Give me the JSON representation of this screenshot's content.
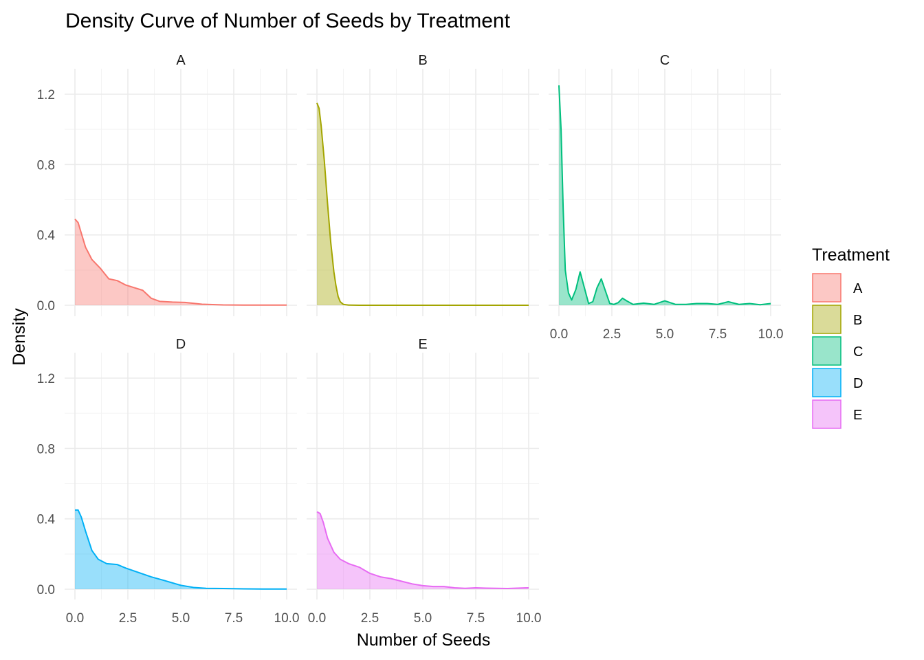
{
  "chart_data": {
    "type": "area",
    "title": "Density Curve of Number of Seeds by Treatment",
    "xlabel": "Number of Seeds",
    "ylabel": "Density",
    "xlim": [
      0,
      10
    ],
    "ylim": [
      0,
      1.25
    ],
    "x_ticks": [
      0,
      2.5,
      5,
      7.5,
      10
    ],
    "x_tick_labels": [
      "0.0",
      "2.5",
      "5.0",
      "7.5",
      "10.0"
    ],
    "y_ticks": [
      0,
      0.4,
      0.8,
      1.2
    ],
    "y_tick_labels": [
      "0.0",
      "0.4",
      "0.8",
      "1.2"
    ],
    "grid": true,
    "legend": {
      "title": "Treatment",
      "placement": "right",
      "entries": [
        "A",
        "B",
        "C",
        "D",
        "E"
      ]
    },
    "panels": [
      {
        "name": "A",
        "color": "#F8766D",
        "x": [
          0,
          0.15,
          0.3,
          0.5,
          0.8,
          1.2,
          1.6,
          2.0,
          2.4,
          2.8,
          3.2,
          3.6,
          4.0,
          4.6,
          5.2,
          6.0,
          7.0,
          8.0,
          9.0,
          10.0
        ],
        "y": [
          0.49,
          0.47,
          0.41,
          0.33,
          0.26,
          0.21,
          0.15,
          0.14,
          0.115,
          0.1,
          0.085,
          0.04,
          0.022,
          0.018,
          0.016,
          0.006,
          0.002,
          0.001,
          0.001,
          0.001
        ]
      },
      {
        "name": "B",
        "color": "#A3A500",
        "x": [
          0,
          0.1,
          0.2,
          0.35,
          0.5,
          0.65,
          0.8,
          0.9,
          1.0,
          1.1,
          1.25,
          1.5,
          2,
          3,
          5,
          7.5,
          10
        ],
        "y": [
          1.15,
          1.12,
          1.02,
          0.82,
          0.58,
          0.36,
          0.19,
          0.11,
          0.05,
          0.02,
          0.005,
          0.001,
          0,
          0,
          0,
          0,
          0
        ]
      },
      {
        "name": "C",
        "color": "#00BF7D",
        "x": [
          0,
          0.1,
          0.2,
          0.3,
          0.45,
          0.6,
          0.8,
          1.0,
          1.2,
          1.4,
          1.6,
          1.8,
          2.0,
          2.2,
          2.4,
          2.6,
          2.8,
          3.0,
          3.2,
          3.5,
          4.0,
          4.5,
          5.0,
          5.5,
          6.0,
          6.5,
          7.0,
          7.5,
          8.0,
          8.5,
          9.0,
          9.5,
          10.0
        ],
        "y": [
          1.25,
          1.0,
          0.55,
          0.2,
          0.07,
          0.03,
          0.09,
          0.19,
          0.1,
          0.01,
          0.02,
          0.1,
          0.15,
          0.08,
          0.01,
          0.005,
          0.015,
          0.04,
          0.025,
          0.005,
          0.012,
          0.005,
          0.025,
          0.005,
          0.005,
          0.01,
          0.01,
          0.005,
          0.02,
          0.005,
          0.01,
          0.003,
          0.01
        ]
      },
      {
        "name": "D",
        "color": "#00B0F6",
        "x": [
          0,
          0.15,
          0.3,
          0.5,
          0.8,
          1.1,
          1.5,
          2.0,
          2.4,
          3.0,
          3.6,
          4.2,
          5.0,
          5.6,
          6.2,
          7.0,
          7.5,
          8.0,
          9.0,
          10.0
        ],
        "y": [
          0.45,
          0.45,
          0.41,
          0.33,
          0.22,
          0.17,
          0.145,
          0.14,
          0.12,
          0.095,
          0.07,
          0.05,
          0.022,
          0.01,
          0.005,
          0.004,
          0.003,
          0.002,
          0.001,
          0.001
        ]
      },
      {
        "name": "E",
        "color": "#E76BF3",
        "x": [
          0,
          0.15,
          0.3,
          0.5,
          0.8,
          1.1,
          1.5,
          2.0,
          2.5,
          3.0,
          3.5,
          4.0,
          4.5,
          5.0,
          5.5,
          6.0,
          6.5,
          7.0,
          7.5,
          8.0,
          9.0,
          10.0
        ],
        "y": [
          0.44,
          0.43,
          0.38,
          0.29,
          0.21,
          0.17,
          0.145,
          0.125,
          0.09,
          0.07,
          0.06,
          0.045,
          0.03,
          0.02,
          0.015,
          0.015,
          0.008,
          0.005,
          0.008,
          0.006,
          0.004,
          0.008
        ]
      }
    ]
  }
}
